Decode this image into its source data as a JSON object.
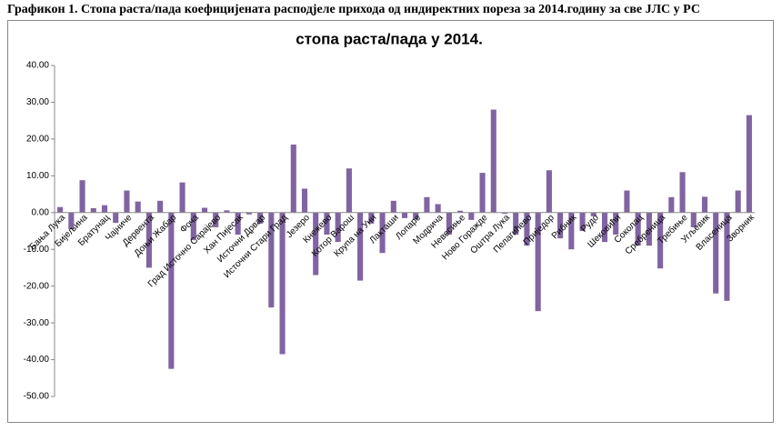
{
  "heading": "Графикон 1. Стопа раста/пада коефицијената расподјеле прихода од индиректних пореза за 2014.годину за све ЈЛС у РС",
  "chart_data": {
    "type": "bar",
    "title": "стопа раста/пада у 2014.",
    "categories": [
      "Бања Лука",
      null,
      "Бијељина",
      null,
      "Братунац",
      null,
      "Чајниче",
      null,
      "Дервента",
      null,
      "Доњи Жабар",
      null,
      "Фоча",
      null,
      "Град Источно Сарајево",
      null,
      "Хан Пијесак",
      null,
      "Источни Дрвар",
      null,
      "Источни Стари Град",
      null,
      "Језеро",
      null,
      "Кнежево",
      null,
      "Котор Варош",
      null,
      "Крупа на Уни",
      null,
      "Лакташи",
      null,
      "Лопаре",
      null,
      "Модрича",
      null,
      "Невесиње",
      null,
      "Ново Горажде",
      null,
      "Оштра Лука",
      null,
      "Пелагићево",
      null,
      "Приједор",
      null,
      "Рибник",
      null,
      "Рудо",
      null,
      "Шековићи",
      null,
      "Соколац",
      null,
      "Сребреница",
      null,
      "Требиње",
      null,
      "Угљевик",
      null,
      "Власеница",
      null,
      "Зворник"
    ],
    "values": [
      1.5,
      -4.5,
      8.8,
      1.2,
      2,
      -2.8,
      6,
      3,
      -15,
      3.2,
      -42.5,
      8.2,
      -7.5,
      1.3,
      -4,
      0.6,
      -6,
      -0.5,
      -3,
      -25.8,
      -38.5,
      18.5,
      6.5,
      -17,
      -6,
      -8,
      12,
      -18.5,
      -3,
      -11,
      3.2,
      -1.5,
      -1.8,
      4.2,
      2.3,
      -6,
      0.5,
      -2,
      10.8,
      28,
      -0.3,
      -6,
      -9,
      -26.8,
      11.5,
      -7,
      -10,
      -5,
      -1,
      -8,
      -6,
      6,
      -9,
      -9,
      -15.2,
      4.2,
      11,
      -4,
      4.3,
      -22,
      -24,
      6,
      26.5
    ],
    "color": "#8064a2",
    "ylim": [
      -50,
      40
    ],
    "yticks": [
      {
        "value": -50,
        "label": "-50.00"
      },
      {
        "value": -40,
        "label": "-40.00"
      },
      {
        "value": -30,
        "label": "-30.00"
      },
      {
        "value": -20,
        "label": "-20.00"
      },
      {
        "value": -10,
        "label": "-10.00"
      },
      {
        "value": 0,
        "label": "0.00"
      },
      {
        "value": 10,
        "label": "10.00"
      },
      {
        "value": 20,
        "label": "20.00"
      },
      {
        "value": 30,
        "label": "30.00"
      },
      {
        "value": 40,
        "label": "40.00"
      }
    ],
    "grid": false
  }
}
